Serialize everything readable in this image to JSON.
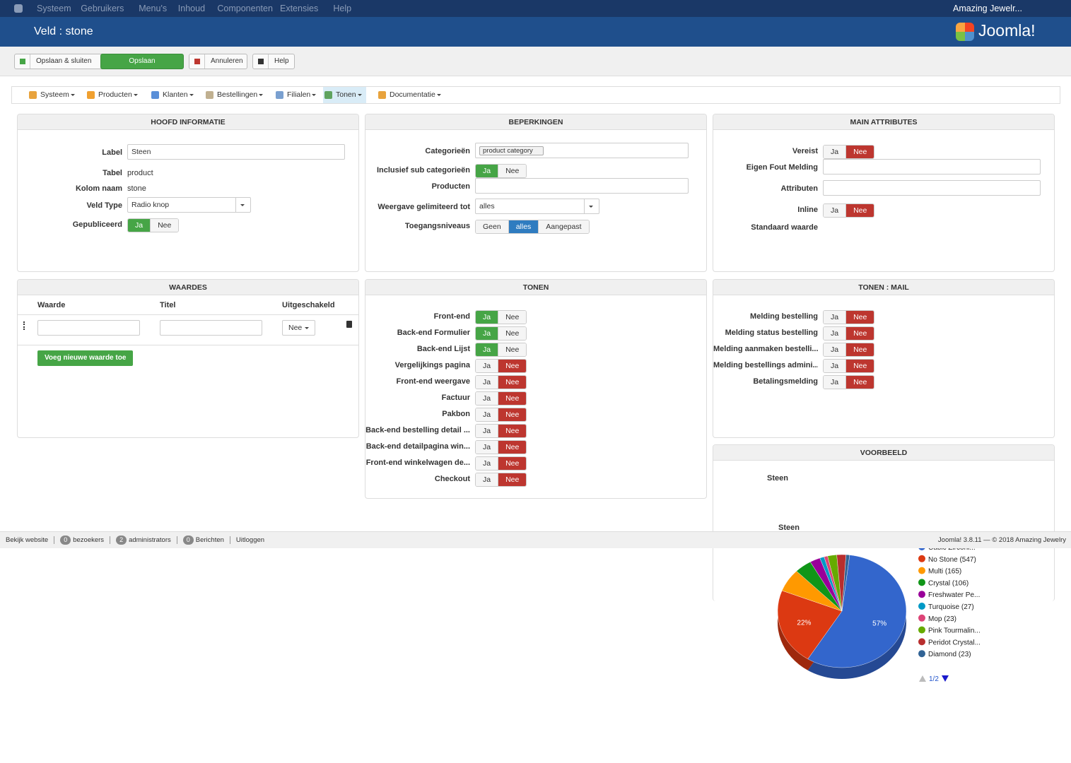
{
  "topbar": {
    "menu": [
      "Systeem",
      "Gebruikers",
      "Menu's",
      "Inhoud",
      "Componenten",
      "Extensies",
      "Help"
    ],
    "user": "Amazing Jewelr..."
  },
  "header": {
    "title": "Veld : stone",
    "logo": "Joomla!"
  },
  "toolbar": [
    "Opslaan & sluiten",
    "Opslaan",
    "Annuleren",
    "Help"
  ],
  "nav": [
    "Systeem",
    "Producten",
    "Klanten",
    "Bestellingen",
    "Filialen",
    "Tonen",
    "Documentatie"
  ],
  "panels": [
    {
      "title": "HOOFD INFORMATIE",
      "rows": [
        {
          "label": "Label",
          "kind": "input",
          "value": "Steen"
        },
        {
          "label": "Tabel",
          "kind": "text",
          "value": "product"
        },
        {
          "label": "Kolom naam",
          "kind": "text",
          "value": "stone"
        },
        {
          "label": "Veld Type",
          "kind": "select",
          "value": "Radio knop"
        },
        {
          "label": "Gepubliceerd",
          "kind": "toggle",
          "options": [
            "Ja",
            "Nee"
          ],
          "active": 0,
          "active_color": "#46a546"
        }
      ]
    },
    {
      "title": "BEPERKINGEN",
      "rows": [
        {
          "label": "Categorieën",
          "kind": "tags",
          "value": "product category"
        },
        {
          "label": "Inclusief sub categorieën",
          "kind": "toggle",
          "options": [
            "Ja",
            "Nee"
          ],
          "active": 0,
          "active_color": "#46a546"
        },
        {
          "label": "Producten",
          "kind": "input"
        },
        {
          "label": "Weergave gelimiteerd tot",
          "kind": "select",
          "value": "alles"
        },
        {
          "label": "Toegangsniveaus",
          "kind": "toggle",
          "options": [
            "Geen",
            "alles",
            "Aangepast"
          ],
          "active": 1,
          "active_color": "#2f7cc0"
        }
      ]
    },
    {
      "title": "MAIN ATTRIBUTES",
      "rows": [
        {
          "label": "Vereist",
          "kind": "toggle",
          "options": [
            "Ja",
            "Nee"
          ],
          "active": 1,
          "active_color": "#bd362f"
        },
        {
          "label": "Eigen Fout Melding",
          "kind": "input"
        },
        {
          "label": "Attributen",
          "kind": "input"
        },
        {
          "label": "Inline",
          "kind": "toggle",
          "options": [
            "Ja",
            "Nee"
          ],
          "active": 1,
          "active_color": "#bd362f"
        },
        {
          "label": "Standaard waarde",
          "kind": "text"
        }
      ]
    },
    {
      "title": "TONEN",
      "rows": [
        {
          "label": "Front-end",
          "kind": "toggle",
          "options": [
            "Ja",
            "Nee"
          ],
          "active": 0,
          "active_color": "#46a546"
        },
        {
          "label": "Back-end Formulier",
          "kind": "toggle",
          "options": [
            "Ja",
            "Nee"
          ],
          "active": 0,
          "active_color": "#46a546"
        },
        {
          "label": "Back-end Lijst",
          "kind": "toggle",
          "options": [
            "Ja",
            "Nee"
          ],
          "active": 0,
          "active_color": "#46a546"
        },
        {
          "label": "Vergelijkings pagina",
          "kind": "toggle",
          "options": [
            "Ja",
            "Nee"
          ],
          "active": 1,
          "active_color": "#bd362f"
        },
        {
          "label": "Front-end weergave",
          "kind": "toggle",
          "options": [
            "Ja",
            "Nee"
          ],
          "active": 1,
          "active_color": "#bd362f"
        },
        {
          "label": "Factuur",
          "kind": "toggle",
          "options": [
            "Ja",
            "Nee"
          ],
          "active": 1,
          "active_color": "#bd362f"
        },
        {
          "label": "Pakbon",
          "kind": "toggle",
          "options": [
            "Ja",
            "Nee"
          ],
          "active": 1,
          "active_color": "#bd362f"
        },
        {
          "label": "Back-end bestelling detail ...",
          "kind": "toggle",
          "options": [
            "Ja",
            "Nee"
          ],
          "active": 1,
          "active_color": "#bd362f"
        },
        {
          "label": "Back-end detailpagina win...",
          "kind": "toggle",
          "options": [
            "Ja",
            "Nee"
          ],
          "active": 1,
          "active_color": "#bd362f"
        },
        {
          "label": "Front-end winkelwagen de...",
          "kind": "toggle",
          "options": [
            "Ja",
            "Nee"
          ],
          "active": 1,
          "active_color": "#bd362f"
        },
        {
          "label": "Checkout",
          "kind": "toggle",
          "options": [
            "Ja",
            "Nee"
          ],
          "active": 1,
          "active_color": "#bd362f"
        }
      ]
    },
    {
      "title": "TONEN : MAIL",
      "rows": [
        {
          "label": "Melding bestelling",
          "kind": "toggle",
          "options": [
            "Ja",
            "Nee"
          ],
          "active": 1,
          "active_color": "#bd362f"
        },
        {
          "label": "Melding status bestelling",
          "kind": "toggle",
          "options": [
            "Ja",
            "Nee"
          ],
          "active": 1,
          "active_color": "#bd362f"
        },
        {
          "label": "Melding aanmaken bestelli...",
          "kind": "toggle",
          "options": [
            "Ja",
            "Nee"
          ],
          "active": 1,
          "active_color": "#bd362f"
        },
        {
          "label": "Melding bestellings admini...",
          "kind": "toggle",
          "options": [
            "Ja",
            "Nee"
          ],
          "active": 1,
          "active_color": "#bd362f"
        },
        {
          "label": "Betalingsmelding",
          "kind": "toggle",
          "options": [
            "Ja",
            "Nee"
          ],
          "active": 1,
          "active_color": "#bd362f"
        }
      ]
    }
  ],
  "waardes": {
    "title": "WAARDES",
    "columns": [
      "Waarde",
      "Titel",
      "Uitgeschakeld"
    ],
    "select": "Nee",
    "button": "Voeg nieuwe waarde toe"
  },
  "voorbeeld": {
    "title": "VOORBEELD",
    "label": "Steen",
    "chart_title": "Steen",
    "chart_data": {
      "type": "pie",
      "categories": [
        "Cubic Zirconi...",
        "No Stone (547)",
        "Multi (165)",
        "Crystal (106)",
        "Freshwater Pe...",
        "Turquoise (27)",
        "Mop (23)",
        "Pink Tourmalin...",
        "Peridot Crystal...",
        "Diamond (23)"
      ],
      "values": [
        57,
        22,
        6.6,
        4.3,
        2.6,
        1.1,
        0.9,
        2.3,
        2.3,
        0.9
      ],
      "value_labels": [
        "57%",
        "22%",
        null,
        null,
        null,
        null,
        null,
        null,
        null,
        null
      ],
      "colors": [
        "#3366cc",
        "#dc3912",
        "#ff9900",
        "#109618",
        "#990099",
        "#0099c6",
        "#dd4477",
        "#66aa00",
        "#b82e2e",
        "#316395"
      ],
      "page": "1/2"
    }
  },
  "footer": {
    "links": [
      "Bekijk website",
      "bezoekers",
      "administrators",
      "Berichten",
      "Uitloggen"
    ],
    "counts": [
      0,
      2,
      0
    ],
    "version": "Joomla! 3.8.11  —  © 2018 Amazing Jewelry"
  }
}
